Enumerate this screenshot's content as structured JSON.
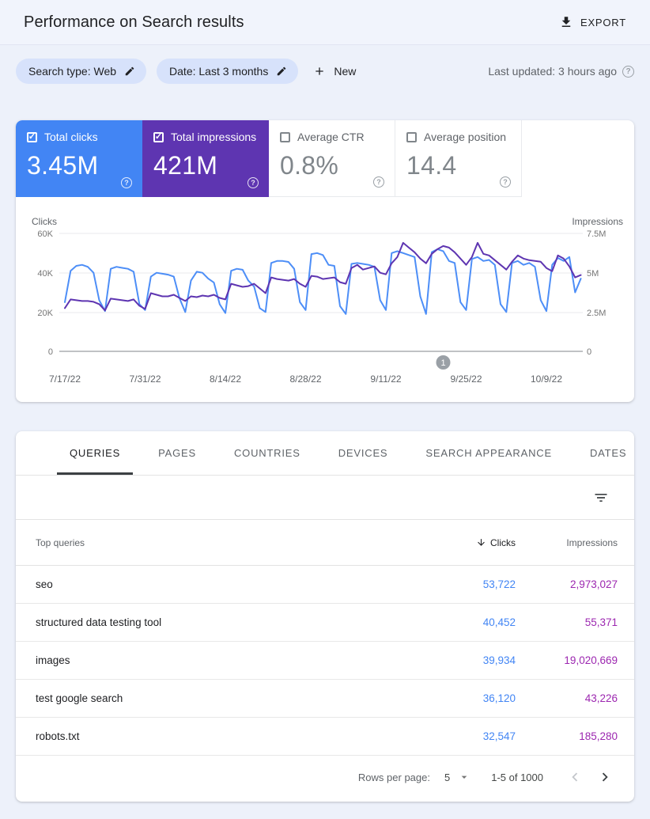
{
  "colors": {
    "clicks_blue": "#4285f4",
    "impressions_purple": "#5e35b1",
    "chart_clicks_line": "#4d8ef7",
    "chart_impressions_line": "#5e35b1",
    "table_clicks_value": "#4285f4",
    "table_impressions_value": "#9c27b0",
    "chip_bg": "#d7e2fb",
    "page_bg": "#edf1fa"
  },
  "icons": {
    "export": "download-icon",
    "chip_edit": "pencil-icon",
    "new": "plus-icon",
    "help": "question-circle-icon",
    "sort": "arrow-down-icon",
    "table_filter": "filter-list-icon",
    "rows_dropdown": "caret-down-icon",
    "prev_page": "chevron-left-icon",
    "next_page": "chevron-right-icon"
  },
  "header": {
    "title": "Performance on Search results",
    "export_label": "EXPORT"
  },
  "filters": {
    "chips": [
      {
        "label": "Search type: Web"
      },
      {
        "label": "Date: Last 3 months"
      }
    ],
    "new_label": "New",
    "last_updated": "Last updated: 3 hours ago"
  },
  "metrics": {
    "cards": [
      {
        "label": "Total clicks",
        "value": "3.45M",
        "checked": true,
        "bg": "#4285f4"
      },
      {
        "label": "Total impressions",
        "value": "421M",
        "checked": true,
        "bg": "#5e35b1"
      },
      {
        "label": "Average CTR",
        "value": "0.8%",
        "checked": false,
        "bg": ""
      },
      {
        "label": "Average position",
        "value": "14.4",
        "checked": false,
        "bg": ""
      }
    ]
  },
  "chart_data": {
    "type": "line",
    "title": "",
    "grid": true,
    "legend": "none",
    "x_tick_labels": [
      "7/17/22",
      "7/31/22",
      "8/14/22",
      "8/28/22",
      "9/11/22",
      "9/25/22",
      "10/9/22"
    ],
    "left_axis": {
      "label": "Clicks",
      "units": "thousands",
      "max": 60,
      "min": 0,
      "ticks": [
        "60K",
        "40K",
        "20K",
        "0"
      ]
    },
    "right_axis": {
      "label": "Impressions",
      "units": "millions",
      "max": 7.5,
      "min": 0,
      "ticks": [
        "7.5M",
        "5M",
        "2.5M",
        "0"
      ]
    },
    "series": [
      {
        "name": "Clicks",
        "axis": "left",
        "color": "#4d8ef7",
        "values": [
          25,
          41,
          43.5,
          44,
          43,
          40,
          26,
          20.5,
          42,
          43,
          42.5,
          42,
          40.5,
          24,
          21,
          38,
          40,
          39.5,
          39,
          38,
          27,
          20,
          36,
          40.5,
          40,
          37,
          35,
          24,
          19.5,
          41,
          42,
          41.5,
          36,
          33,
          22,
          20,
          45,
          46,
          46,
          45.5,
          42,
          25,
          21,
          49.5,
          50,
          49,
          44,
          43.5,
          23,
          19,
          44.5,
          45,
          44.5,
          44,
          43,
          26,
          21,
          50,
          51,
          50,
          49,
          48,
          28,
          19,
          50.5,
          52,
          51,
          46,
          45,
          25,
          21,
          47,
          48,
          46,
          46.5,
          44,
          24,
          20,
          45,
          46,
          44,
          45,
          43,
          26,
          20.5,
          44,
          47.5,
          46,
          48,
          30,
          37
        ]
      },
      {
        "name": "Impressions",
        "axis": "right",
        "color": "#5e35b1",
        "values": [
          2.75,
          3.3,
          3.25,
          3.2,
          3.2,
          3.15,
          3.0,
          2.6,
          3.35,
          3.3,
          3.25,
          3.2,
          3.3,
          2.9,
          2.7,
          3.7,
          3.6,
          3.5,
          3.5,
          3.6,
          3.4,
          3.2,
          3.5,
          3.45,
          3.55,
          3.5,
          3.6,
          3.4,
          3.3,
          4.3,
          4.2,
          4.1,
          4.15,
          4.3,
          4.0,
          3.7,
          4.7,
          4.6,
          4.55,
          4.5,
          4.6,
          4.3,
          4.1,
          4.8,
          4.75,
          4.6,
          4.65,
          4.7,
          4.4,
          4.3,
          5.3,
          5.5,
          5.2,
          5.3,
          5.4,
          5.0,
          4.9,
          5.6,
          6.0,
          6.9,
          6.6,
          6.3,
          5.9,
          5.6,
          6.2,
          6.5,
          6.7,
          6.6,
          6.3,
          5.9,
          5.5,
          6.0,
          6.9,
          6.2,
          6.1,
          5.8,
          5.5,
          5.2,
          5.7,
          6.1,
          5.9,
          5.8,
          5.75,
          5.7,
          5.3,
          5.1,
          6.1,
          5.9,
          5.4,
          4.7,
          4.85
        ]
      }
    ],
    "annotation_marker": {
      "label": "1",
      "day_index": 66
    }
  },
  "table": {
    "tabs": [
      {
        "label": "QUERIES",
        "active": true
      },
      {
        "label": "PAGES",
        "active": false
      },
      {
        "label": "COUNTRIES",
        "active": false
      },
      {
        "label": "DEVICES",
        "active": false
      },
      {
        "label": "SEARCH APPEARANCE",
        "active": false
      },
      {
        "label": "DATES",
        "active": false
      }
    ],
    "columns": {
      "query": "Top queries",
      "clicks": "Clicks",
      "impressions": "Impressions"
    },
    "rows": [
      {
        "query": "seo",
        "clicks": "53,722",
        "impressions": "2,973,027"
      },
      {
        "query": "structured data testing tool",
        "clicks": "40,452",
        "impressions": "55,371"
      },
      {
        "query": "images",
        "clicks": "39,934",
        "impressions": "19,020,669"
      },
      {
        "query": "test google search",
        "clicks": "36,120",
        "impressions": "43,226"
      },
      {
        "query": "robots.txt",
        "clicks": "32,547",
        "impressions": "185,280"
      }
    ],
    "pagination": {
      "rows_per_page_label": "Rows per page:",
      "rows_per_page_value": "5",
      "range": "1-5 of 1000"
    }
  }
}
